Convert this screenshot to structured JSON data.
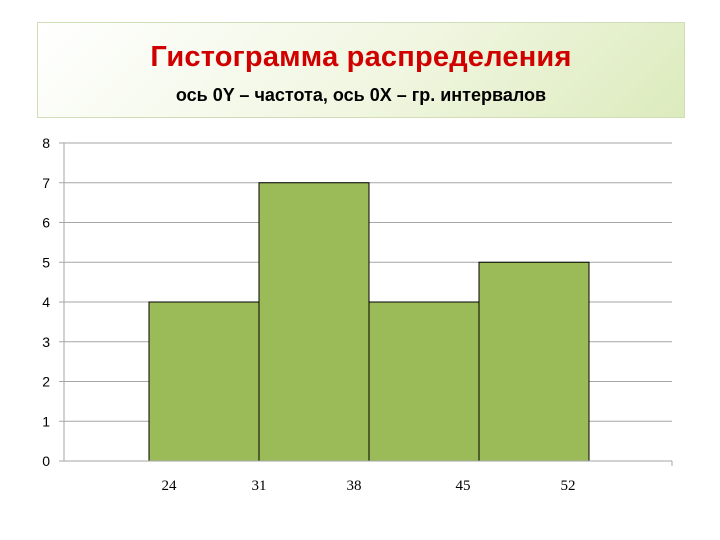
{
  "header": {
    "title": "Гистограмма распределения",
    "subtitle": "ось 0Y – частота, ось 0X – гр. интервалов"
  },
  "colors": {
    "title": "#d00000",
    "bar_fill": "#9bbb59",
    "bar_stroke": "#000000",
    "grid": "#a6a6a6"
  },
  "chart_data": {
    "type": "bar",
    "title": "Гистограмма распределения",
    "subtitle": "ось 0Y – частота, ось 0X – гр. интервалов",
    "x_ticks": [
      "24",
      "31",
      "38",
      "45",
      "52"
    ],
    "bins": [
      {
        "from": 24,
        "to": 31,
        "value": 4
      },
      {
        "from": 31,
        "to": 38,
        "value": 7
      },
      {
        "from": 38,
        "to": 45,
        "value": 4
      },
      {
        "from": 45,
        "to": 52,
        "value": 5
      }
    ],
    "y_ticks": [
      "0",
      "1",
      "2",
      "3",
      "4",
      "5",
      "6",
      "7",
      "8"
    ],
    "ylim": [
      0,
      8
    ],
    "grid": true,
    "legend": "none"
  }
}
